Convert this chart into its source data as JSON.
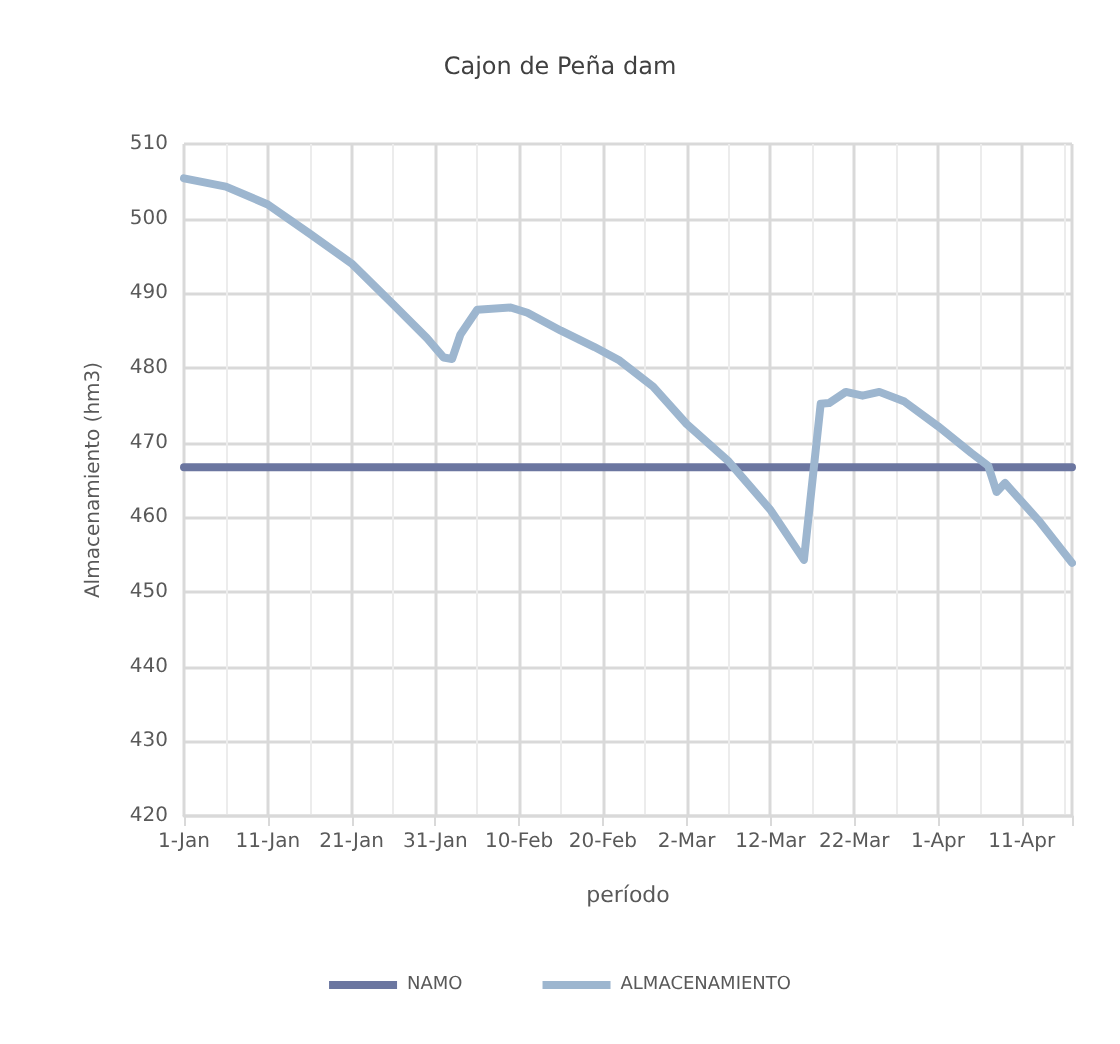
{
  "chart_data": {
    "type": "line",
    "title": "Cajon de Peña dam",
    "xlabel": "período",
    "ylabel": "Almacenamiento (hm3)",
    "xlim": [
      "--01-01",
      "--04-17"
    ],
    "xticks": [
      {
        "value": "--01-01",
        "label": "1-Jan"
      },
      {
        "value": "--01-11",
        "label": "11-Jan"
      },
      {
        "value": "--01-21",
        "label": "21-Jan"
      },
      {
        "value": "--01-31",
        "label": "31-Jan"
      },
      {
        "value": "--02-10",
        "label": "10-Feb"
      },
      {
        "value": "--02-20",
        "label": "20-Feb"
      },
      {
        "value": "--03-02",
        "label": "2-Mar"
      },
      {
        "value": "--03-12",
        "label": "12-Mar"
      },
      {
        "value": "--03-22",
        "label": "22-Mar"
      },
      {
        "value": "--04-01",
        "label": "1-Apr"
      },
      {
        "value": "--04-11",
        "label": "11-Apr"
      }
    ],
    "ylim": [
      420,
      510
    ],
    "yticks": [
      420,
      430,
      440,
      450,
      460,
      470,
      480,
      490,
      500,
      510
    ],
    "grid": true,
    "legend": "bottom",
    "marker": "none",
    "line_style": "solid",
    "series": [
      {
        "name": "NAMO",
        "color": "#6b76a0",
        "x": [
          "--01-01",
          "--04-17"
        ],
        "values": [
          466.7,
          466.7
        ]
      },
      {
        "name": "ALMACENAMIENTO",
        "color": "#9db6cf",
        "x": [
          "--01-01",
          "--01-06",
          "--01-11",
          "--01-16",
          "--01-21",
          "--01-26",
          "--01-30",
          "--02-01",
          "--02-02",
          "--02-03",
          "--02-05",
          "--02-09",
          "--02-11",
          "--02-15",
          "--02-19",
          "--02-22",
          "--02-26",
          "--03-02",
          "--03-07",
          "--03-12",
          "--03-16",
          "--03-18",
          "--03-19",
          "--03-21",
          "--03-23",
          "--03-25",
          "--03-28",
          "--04-01",
          "--04-05",
          "--04-07",
          "--04-08",
          "--04-09",
          "--04-13",
          "--04-17"
        ],
        "values": [
          505.4,
          504.3,
          501.9,
          498,
          494,
          488.5,
          484,
          481.4,
          481.2,
          484.5,
          487.8,
          488.1,
          487.4,
          485,
          482.8,
          481,
          477.5,
          472.5,
          467.5,
          461,
          454.3,
          475.2,
          475.3,
          476.8,
          476.3,
          476.8,
          475.5,
          472.2,
          468.6,
          466.9,
          463.4,
          464.6,
          459.6,
          453.9
        ]
      }
    ]
  }
}
